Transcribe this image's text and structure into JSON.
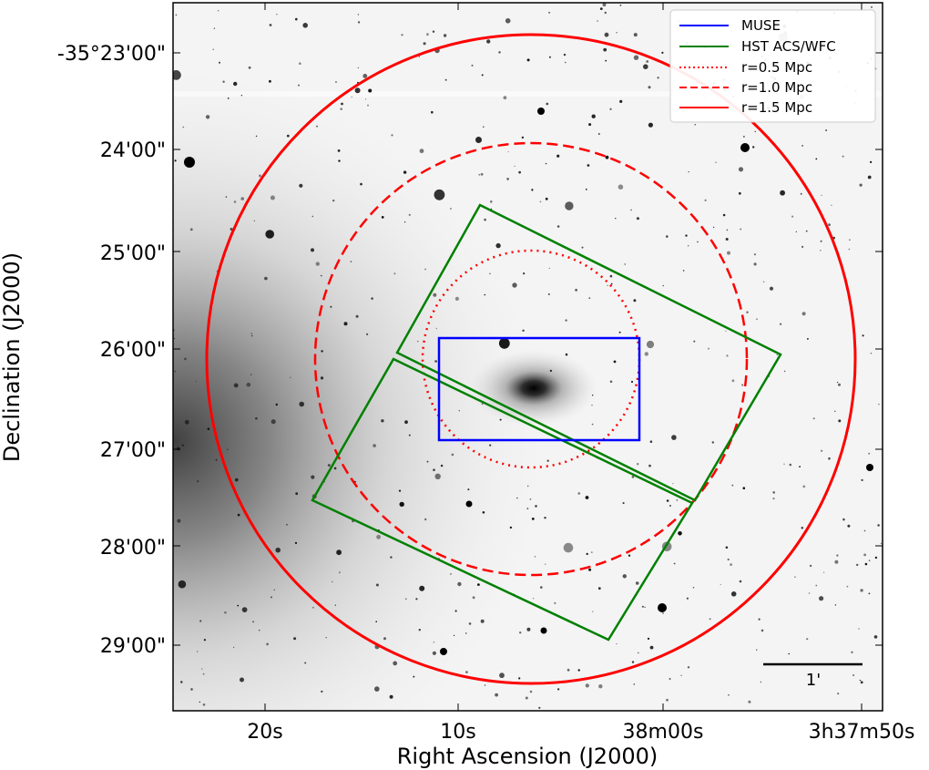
{
  "axes": {
    "xlabel": "Right Ascension (J2000)",
    "ylabel": "Declination (J2000)",
    "x_ticks": [
      {
        "label": "20s"
      },
      {
        "label": "10s"
      },
      {
        "label": "38m00s"
      },
      {
        "label": "3h37m50s"
      }
    ],
    "y_ticks": [
      {
        "label": "-35°23'00\""
      },
      {
        "label": "24'00\""
      },
      {
        "label": "25'00\""
      },
      {
        "label": "26'00\""
      },
      {
        "label": "27'00\""
      },
      {
        "label": "28'00\""
      },
      {
        "label": "29'00\""
      }
    ]
  },
  "legend": {
    "placement": "top-right",
    "items": [
      {
        "label": "MUSE",
        "color": "#0000ff",
        "style": "solid"
      },
      {
        "label": "HST ACS/WFC",
        "color": "#008000",
        "style": "solid"
      },
      {
        "label": "r=0.5 Mpc",
        "color": "#ff0000",
        "style": "dotted"
      },
      {
        "label": "r=1.0 Mpc",
        "color": "#ff0000",
        "style": "dashed"
      },
      {
        "label": "r=1.5 Mpc",
        "color": "#ff0000",
        "style": "solid"
      }
    ]
  },
  "scale_bar": {
    "label": "1'"
  },
  "colors": {
    "muse": "#0000ff",
    "hst": "#008000",
    "radius": "#ff0000",
    "sky": "#f4f4f4"
  }
}
